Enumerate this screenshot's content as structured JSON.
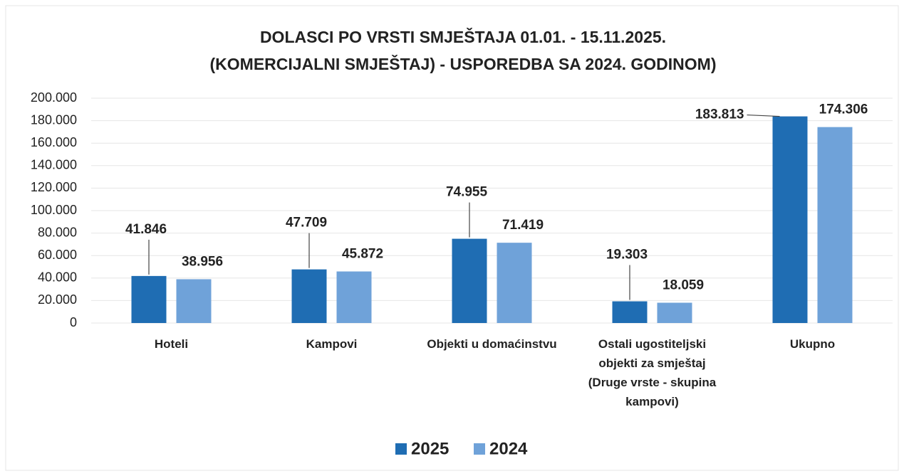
{
  "chart_data": {
    "type": "bar",
    "title": [
      "DOLASCI PO VRSTI SMJEŠTAJA 01.01. - 15.11.2025.",
      "(KOMERCIJALNI SMJEŠTAJ) - USPOREDBA SA 2024. GODINOM)"
    ],
    "categories": [
      "Hoteli",
      "Kampovi",
      "Objekti u domaćinstvu",
      "Ostali ugostiteljski objekti za smještaj (Druge vrste - skupina kampovi)",
      "Ukupno"
    ],
    "series": [
      {
        "name": "2025",
        "color": "#1f6db3",
        "values": [
          41846,
          47709,
          74955,
          19303,
          183813
        ],
        "value_labels": [
          "41.846",
          "47.709",
          "74.955",
          "19.303",
          "183.813"
        ]
      },
      {
        "name": "2024",
        "color": "#6fa2d9",
        "values": [
          38956,
          45872,
          71419,
          18059,
          174306
        ],
        "value_labels": [
          "38.956",
          "45.872",
          "71.419",
          "18.059",
          "174.306"
        ]
      }
    ],
    "ylim": [
      0,
      200000
    ],
    "yticks": [
      0,
      {
        "value": 20000,
        "label": "20.000"
      },
      {
        "value": 40000,
        "label": "40.000"
      },
      {
        "value": 60000,
        "label": "60.000"
      },
      {
        "value": 80000,
        "label": "80.000"
      },
      {
        "value": 100000,
        "label": "100.000"
      },
      {
        "value": 120000,
        "label": "120.000"
      },
      {
        "value": 140000,
        "label": "140.000"
      },
      {
        "value": 160000,
        "label": "160.000"
      },
      {
        "value": 180000,
        "label": "180.000"
      },
      {
        "value": 200000,
        "label": "200.000"
      }
    ],
    "grid": true,
    "legend": "bottom"
  }
}
